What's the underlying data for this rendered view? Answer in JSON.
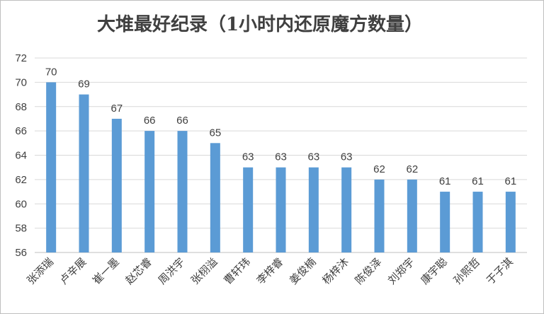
{
  "chart_data": {
    "type": "bar",
    "title": "大堆最好纪录（1小时内还原魔方数量）",
    "categories": [
      "张添瑞",
      "卢辛展",
      "崔一墨",
      "赵芯睿",
      "周洪宇",
      "张栩溢",
      "曹轩玮",
      "李梓睿",
      "姜俊楠",
      "杨梓沐",
      "陈俊泽",
      "刘郑宇",
      "康宇聪",
      "孙熙哲",
      "于子淇"
    ],
    "values": [
      70,
      69,
      67,
      66,
      66,
      65,
      63,
      63,
      63,
      63,
      62,
      62,
      61,
      61,
      61
    ],
    "ylim": [
      56,
      72
    ],
    "yticks": [
      56,
      58,
      60,
      62,
      64,
      66,
      68,
      70,
      72
    ],
    "grid": true,
    "legend": "none",
    "bar_color": "#5b9bd5"
  }
}
